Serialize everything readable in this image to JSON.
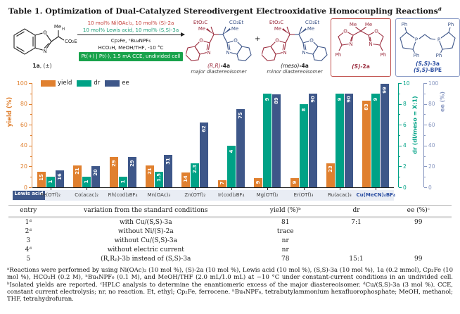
{
  "title": "Table 1. Optimization of Dual-Catalyzed Stereodivergent Electrooxidative Homocoupling Reactions",
  "title_mark": "a",
  "scheme": {
    "substrate": {
      "caption_bold": "1a",
      "caption_rest": ", (±)"
    },
    "conditions": {
      "line1": "10 mol% Ni(OAc)₂, 10 mol% (S)-2a",
      "line2": "10 mol% Lewis acid, 10 mol% (S,S)-3a",
      "line3": "Cp₂Fe, ⁿBu₄NPF₆",
      "line4": "HCO₂H, MeOH/THF, -10 °C",
      "badge": "Pt(+) | Pt(-), 1.5 mA CCE, undivided cell",
      "line1_color": "#C23B35",
      "line2_color": "#1C9E77",
      "badge_bg": "#18A24B"
    },
    "plus": "+",
    "products": [
      {
        "prefix": "(R,R)",
        "suffix": "-4a",
        "role": "major diastereoisomer",
        "prefix_color": "#9C2F40"
      },
      {
        "prefix": "(meso)",
        "suffix": "-4a",
        "role": "minor diastereoisomer",
        "prefix_color": "#222222"
      }
    ],
    "ligands": [
      {
        "prefix": "(S)",
        "suffix": "-2a",
        "color": "#9C2F40",
        "border": "#C0504D"
      },
      {
        "prefix": "(S,S)",
        "suffix": "-3a",
        "prefix2": "(S,S)",
        "suffix2": "-BPE",
        "color": "#2B4EA1",
        "border": "#8A9BC6"
      }
    ],
    "atom_labels": {
      "me": "Me",
      "h": "H",
      "o": "O",
      "n": "N",
      "p": "P",
      "ph": "Ph",
      "co2et": "CO₂Et",
      "eto2c": "EtO₂C"
    }
  },
  "chart_data": {
    "type": "bar",
    "categories": [
      "Fe(OTf)₂",
      "Co(acac)₂",
      "Rh(cod)₂BF₄",
      "Mn(OAc)₃",
      "Zn(OTf)₂",
      "Ir(cod)₂BF₄",
      "Mg(OTf)₂",
      "Er(OTf)₃",
      "Ru(acac)₃",
      "Cu(MeCN)₄BF₄"
    ],
    "x_axis_label": "Lewis acid",
    "highlight_category": "Cu(MeCN)₄BF₄",
    "highlight_color": "#2B4EA1",
    "series": [
      {
        "name": "yield",
        "axis": "left",
        "color": "#E0802F",
        "values": [
          15,
          21,
          29,
          21,
          14,
          7,
          9,
          9,
          23,
          83
        ]
      },
      {
        "name": "dr",
        "axis": "dr",
        "color": "#00A286",
        "values": [
          1,
          1,
          1,
          1.5,
          2.3,
          4,
          9,
          8,
          9,
          9
        ]
      },
      {
        "name": "ee",
        "axis": "ee",
        "color": "#3E5789",
        "values": [
          16,
          20,
          29,
          31,
          62,
          75,
          89,
          90,
          90,
          99
        ]
      }
    ],
    "axes": {
      "left": {
        "label": "yield (%)",
        "min": 0,
        "max": 100,
        "major_step": 20,
        "minor_step": 10,
        "color": "#E0802F"
      },
      "dr": {
        "label": "dr (dl/meso = X:1)",
        "min": 0,
        "max": 10,
        "major_step": 2,
        "minor_step": 1,
        "color": "#00A286"
      },
      "ee": {
        "label": "ee (%)",
        "min": 0,
        "max": 100,
        "major_step": 20,
        "minor_step": 10,
        "color": "#8897C1"
      }
    },
    "legend": [
      "yield",
      "dr",
      "ee"
    ],
    "legend_position": "top-left",
    "grid": false,
    "bar_label_color": "#FFFFFF"
  },
  "table": {
    "headers": [
      "entry",
      "variation from the standard conditions",
      "yield (%)ᵇ",
      "dr",
      "ee (%)ᶜ"
    ],
    "rows": [
      {
        "entry": "1ᵈ",
        "variation": "with Cu/(S,S)-3a",
        "yield": "81",
        "dr": "7:1",
        "ee": "99"
      },
      {
        "entry": "2ᵈ",
        "variation": "without Ni/(S)-2a",
        "yield": "trace",
        "dr": "",
        "ee": ""
      },
      {
        "entry": "3",
        "variation": "without Cu/(S,S)-3a",
        "yield": "nr",
        "dr": "",
        "ee": ""
      },
      {
        "entry": "4ᵈ",
        "variation": "without electric current",
        "yield": "nr",
        "dr": "",
        "ee": ""
      },
      {
        "entry": "5",
        "variation": "(R,Rₚ)-3b instead of (S,S)-3a",
        "yield": "78",
        "dr": "15:1",
        "ee": "99"
      }
    ]
  },
  "footnotes": {
    "text": "ᵃReactions were performed by using Ni(OAc)₂ (10 mol %), (S)-2a (10 mol %), Lewis acid (10 mol %), (S,S)-3a (10 mol %), 1a (0.2 mmol), Cp₂Fe (10 mol %), HCO₂H (0.2 M), ⁿBu₄NPF₆ (0.1 M), and MeOH/THF (2.0 mL/1.0 mL) at −10 °C under constant-current conditions in an undivided cell. ᵇIsolated yields are reported. ᶜHPLC analysis to determine the enantiomeric excess of the major diastereoisomer. ᵈCu/(S,S)-3a (3 mol %). CCE, constant current electrolysis; nr, no reaction. Et, ethyl; Cp₂Fe, ferrocene. ⁿBu₄NPF₆, tetrabutylammonium hexafluorophosphate; MeOH, methanol; THF, tetrahydrofuran."
  }
}
